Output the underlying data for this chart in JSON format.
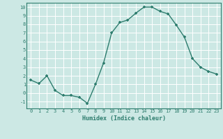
{
  "x": [
    0,
    1,
    2,
    3,
    4,
    5,
    6,
    7,
    8,
    9,
    10,
    11,
    12,
    13,
    14,
    15,
    16,
    17,
    18,
    19,
    20,
    21,
    22,
    23
  ],
  "y": [
    1.5,
    1.1,
    2.0,
    0.3,
    -0.3,
    -0.3,
    -0.5,
    -1.2,
    1.0,
    3.5,
    7.0,
    8.2,
    8.5,
    9.3,
    10.0,
    10.0,
    9.5,
    9.2,
    7.9,
    6.5,
    4.0,
    3.0,
    2.5,
    2.2
  ],
  "xlabel": "Humidex (Indice chaleur)",
  "ylim": [
    -1.8,
    10.5
  ],
  "xlim": [
    -0.5,
    23.5
  ],
  "yticks": [
    -1,
    0,
    1,
    2,
    3,
    4,
    5,
    6,
    7,
    8,
    9,
    10
  ],
  "xticks": [
    0,
    1,
    2,
    3,
    4,
    5,
    6,
    7,
    8,
    9,
    10,
    11,
    12,
    13,
    14,
    15,
    16,
    17,
    18,
    19,
    20,
    21,
    22,
    23
  ],
  "line_color": "#2e7d6e",
  "marker": "+",
  "bg_color": "#cce8e4",
  "grid_color": "#ffffff",
  "plot_bg": "#cce8e4",
  "border_color": "#2e7d6e",
  "tick_color": "#2e7d6e",
  "label_color": "#2e7d6e"
}
